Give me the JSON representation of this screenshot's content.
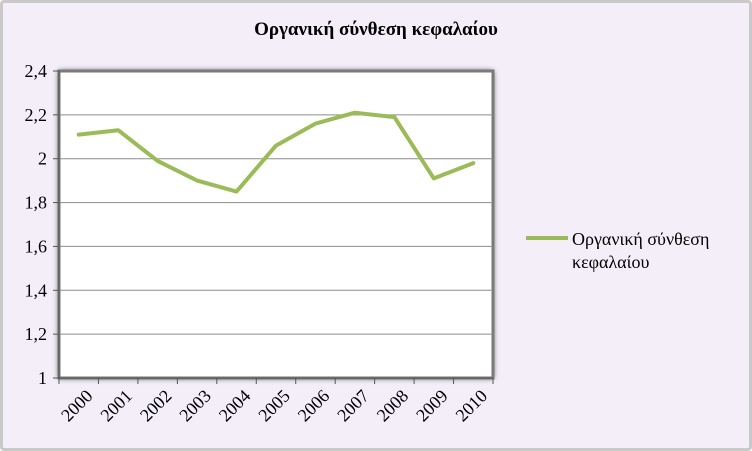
{
  "chart_data": {
    "type": "line",
    "title": "Οργανική σύνθεση κεφαλαίου",
    "xlabel": "",
    "ylabel": "",
    "categories": [
      "2000",
      "2001",
      "2002",
      "2003",
      "2004",
      "2005",
      "2006",
      "2007",
      "2008",
      "2009",
      "2010"
    ],
    "series": [
      {
        "name": "Οργανική σύνθεση κεφαλαίου",
        "values": [
          2.11,
          2.13,
          1.99,
          1.9,
          1.85,
          2.06,
          2.16,
          2.21,
          2.19,
          1.91,
          1.98
        ]
      }
    ],
    "ylim": [
      1,
      2.4
    ],
    "yticks": [
      "1",
      "1,2",
      "1,4",
      "1,6",
      "1,8",
      "2",
      "2,2",
      "2,4"
    ],
    "grid": true,
    "legend_position": "right",
    "colors": {
      "series": "#9bbb59",
      "background": "#f3eef8",
      "plot_area": "#ffffff",
      "grid": "#8c8c8c"
    }
  },
  "legend": {
    "line1": "Οργανική σύνθεση",
    "line2": "κεφαλαίου"
  }
}
